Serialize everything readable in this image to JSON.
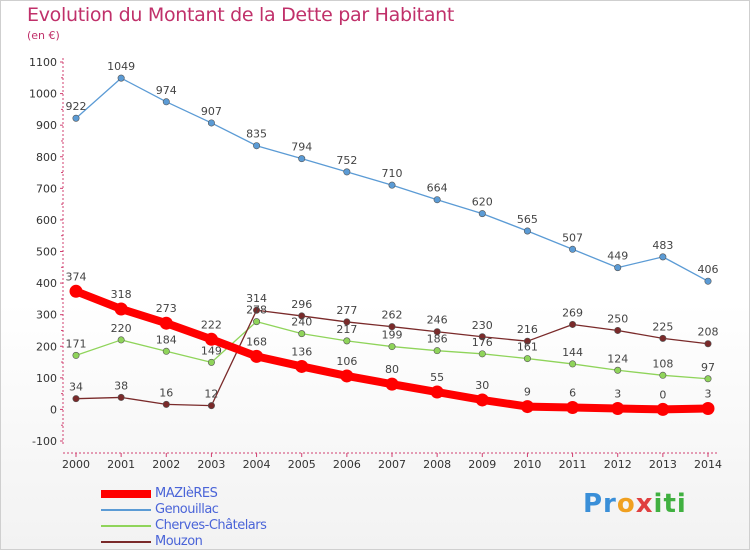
{
  "chart_data": {
    "type": "line",
    "title": "Evolution du Montant de la Dette par Habitant",
    "subtitle": "(en €)",
    "x": [
      "2000",
      "2001",
      "2002",
      "2003",
      "2004",
      "2005",
      "2006",
      "2007",
      "2008",
      "2009",
      "2010",
      "2011",
      "2012",
      "2013",
      "2014"
    ],
    "ylim": [
      -100,
      1100
    ],
    "yticks": [
      -100,
      0,
      100,
      200,
      300,
      400,
      500,
      600,
      700,
      800,
      900,
      1000,
      1100
    ],
    "grid": false,
    "legend_position": "bottom-left",
    "series": [
      {
        "name": "Genouillac",
        "color": "#5b9bd5",
        "values": [
          922,
          1049,
          974,
          907,
          835,
          794,
          752,
          710,
          664,
          620,
          565,
          507,
          449,
          483,
          406
        ]
      },
      {
        "name": "Cherves-Châtelars",
        "color": "#8fd45a",
        "values": [
          171,
          220,
          184,
          149,
          278,
          240,
          217,
          199,
          186,
          176,
          161,
          144,
          124,
          108,
          97
        ]
      },
      {
        "name": "Mouzon",
        "color": "#7a2a2a",
        "values": [
          34,
          38,
          16,
          12,
          314,
          296,
          277,
          262,
          246,
          230,
          216,
          269,
          250,
          225,
          208
        ]
      },
      {
        "name": "MAZIèRES",
        "color": "#ff0000",
        "values": [
          374,
          318,
          273,
          222,
          168,
          136,
          106,
          80,
          55,
          30,
          9,
          6,
          3,
          0,
          3
        ]
      }
    ]
  },
  "legend": [
    {
      "label": "MAZIèRES",
      "color": "#ff0000"
    },
    {
      "label": "Genouillac",
      "color": "#5b9bd5"
    },
    {
      "label": "Cherves-Châtelars",
      "color": "#8fd45a"
    },
    {
      "label": "Mouzon",
      "color": "#7a2a2a"
    }
  ],
  "logo": {
    "part1": "Pr",
    "part2": "o",
    "part3": "x",
    "part4": "iti"
  }
}
